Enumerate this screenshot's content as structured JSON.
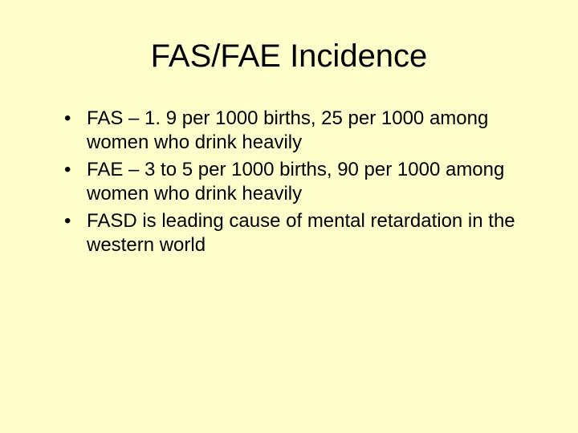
{
  "slide": {
    "background_color": "#ffffcc",
    "text_color": "#000000",
    "title": {
      "text": "FAS/FAE Incidence",
      "font_size": 40,
      "align": "center"
    },
    "bullets": {
      "font_size": 24,
      "marker": "•",
      "items": [
        "FAS – 1. 9 per 1000 births, 25 per 1000 among women who drink heavily",
        "FAE – 3 to 5 per 1000 births, 90 per 1000 among women who drink heavily",
        "FASD is leading cause of mental retardation in the western world"
      ]
    }
  }
}
